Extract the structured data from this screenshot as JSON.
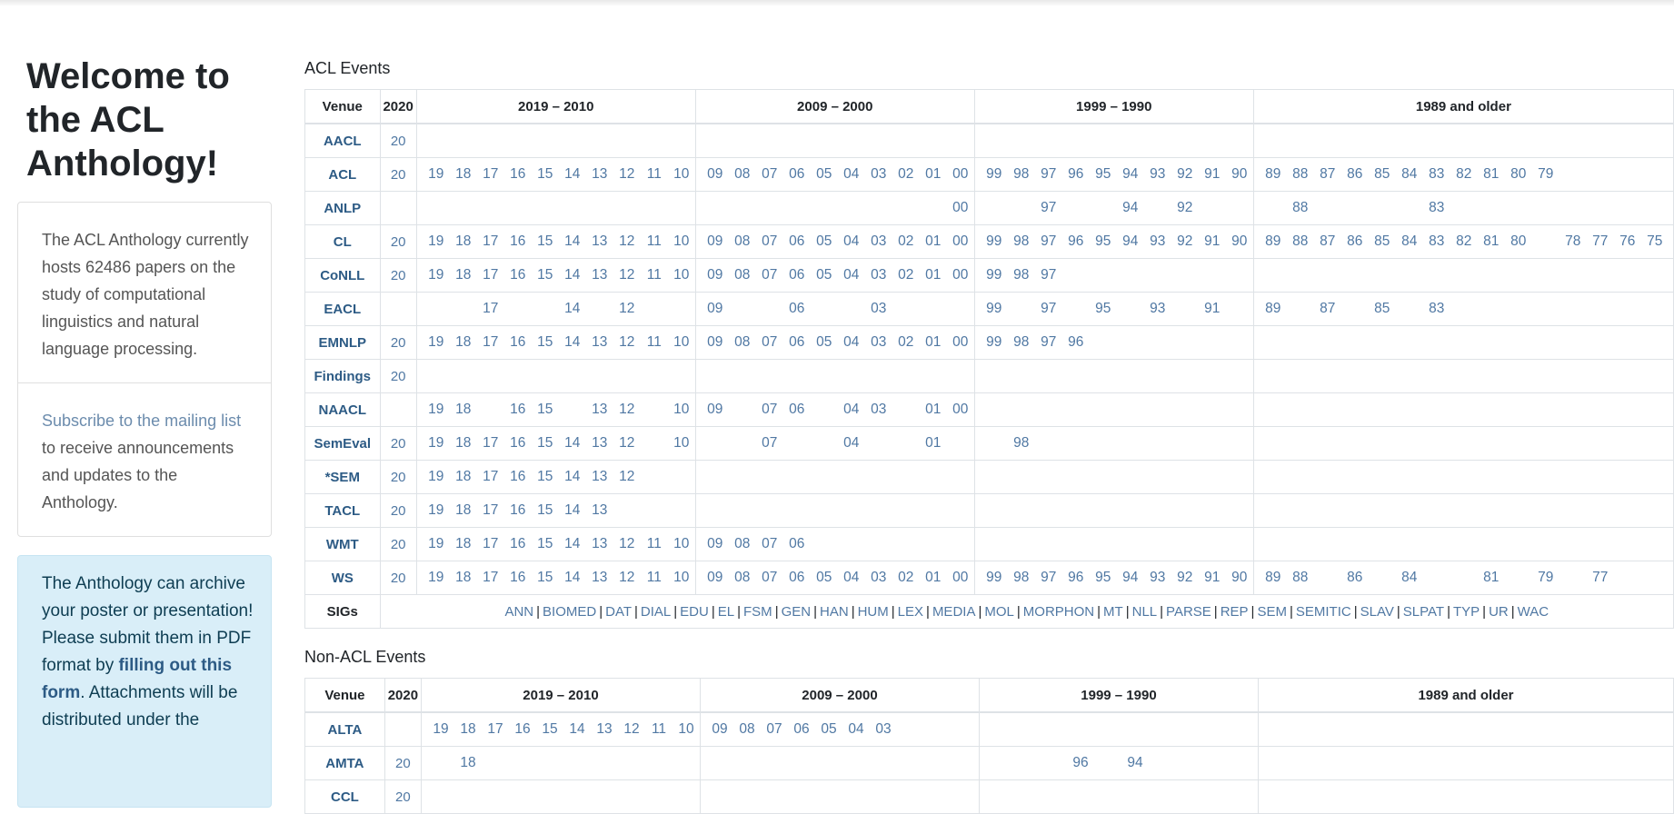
{
  "sidebar": {
    "welcome": "Welcome to the ACL Anthology!",
    "about": "The ACL Anthology currently hosts 62486 papers on the study of computational linguistics and natural language processing.",
    "subscribe_link": "Subscribe to the mailing list",
    "subscribe_rest": " to receive announcements and updates to the Anthology.",
    "info_pre": "The Anthology can archive your poster or presentation! Please submit them in PDF format by ",
    "info_link": "filling out this form",
    "info_post": ". Attachments will be distributed under the"
  },
  "acl_events": {
    "title": "ACL Events",
    "headers": [
      "Venue",
      "2020",
      "2019 – 2010",
      "2009 – 2000",
      "1999 – 1990",
      "1989 and older"
    ],
    "groups": [
      [
        "19",
        "18",
        "17",
        "16",
        "15",
        "14",
        "13",
        "12",
        "11",
        "10"
      ],
      [
        "09",
        "08",
        "07",
        "06",
        "05",
        "04",
        "03",
        "02",
        "01",
        "00"
      ],
      [
        "99",
        "98",
        "97",
        "96",
        "95",
        "94",
        "93",
        "92",
        "91",
        "90"
      ],
      [
        "89",
        "88",
        "87",
        "86",
        "85",
        "84",
        "83",
        "82",
        "81",
        "80",
        "79",
        "78",
        "77",
        "76",
        "75"
      ]
    ],
    "rows": [
      {
        "venue": "AACL",
        "y2020": "20",
        "g1": [],
        "g2": [],
        "g3": [],
        "g4": []
      },
      {
        "venue": "ACL",
        "y2020": "20",
        "g1": [
          "19",
          "18",
          "17",
          "16",
          "15",
          "14",
          "13",
          "12",
          "11",
          "10"
        ],
        "g2": [
          "09",
          "08",
          "07",
          "06",
          "05",
          "04",
          "03",
          "02",
          "01",
          "00"
        ],
        "g3": [
          "99",
          "98",
          "97",
          "96",
          "95",
          "94",
          "93",
          "92",
          "91",
          "90"
        ],
        "g4": [
          "89",
          "88",
          "87",
          "86",
          "85",
          "84",
          "83",
          "82",
          "81",
          "80",
          "79"
        ]
      },
      {
        "venue": "ANLP",
        "y2020": "",
        "g1": [],
        "g2": [
          "00"
        ],
        "g3": [
          "97",
          "94",
          "92"
        ],
        "g4": [
          "88",
          "83"
        ]
      },
      {
        "venue": "CL",
        "y2020": "20",
        "g1": [
          "19",
          "18",
          "17",
          "16",
          "15",
          "14",
          "13",
          "12",
          "11",
          "10"
        ],
        "g2": [
          "09",
          "08",
          "07",
          "06",
          "05",
          "04",
          "03",
          "02",
          "01",
          "00"
        ],
        "g3": [
          "99",
          "98",
          "97",
          "96",
          "95",
          "94",
          "93",
          "92",
          "91",
          "90"
        ],
        "g4": [
          "89",
          "88",
          "87",
          "86",
          "85",
          "84",
          "83",
          "82",
          "81",
          "80",
          "78",
          "77",
          "76",
          "75"
        ]
      },
      {
        "venue": "CoNLL",
        "y2020": "20",
        "g1": [
          "19",
          "18",
          "17",
          "16",
          "15",
          "14",
          "13",
          "12",
          "11",
          "10"
        ],
        "g2": [
          "09",
          "08",
          "07",
          "06",
          "05",
          "04",
          "03",
          "02",
          "01",
          "00"
        ],
        "g3": [
          "99",
          "98",
          "97"
        ],
        "g4": []
      },
      {
        "venue": "EACL",
        "y2020": "",
        "g1": [
          "17",
          "14",
          "12"
        ],
        "g2": [
          "09",
          "06",
          "03"
        ],
        "g3": [
          "99",
          "97",
          "95",
          "93",
          "91"
        ],
        "g4": [
          "89",
          "87",
          "85",
          "83"
        ]
      },
      {
        "venue": "EMNLP",
        "y2020": "20",
        "g1": [
          "19",
          "18",
          "17",
          "16",
          "15",
          "14",
          "13",
          "12",
          "11",
          "10"
        ],
        "g2": [
          "09",
          "08",
          "07",
          "06",
          "05",
          "04",
          "03",
          "02",
          "01",
          "00"
        ],
        "g3": [
          "99",
          "98",
          "97",
          "96"
        ],
        "g4": []
      },
      {
        "venue": "Findings",
        "y2020": "20",
        "g1": [],
        "g2": [],
        "g3": [],
        "g4": []
      },
      {
        "venue": "NAACL",
        "y2020": "",
        "g1": [
          "19",
          "18",
          "16",
          "15",
          "13",
          "12",
          "10"
        ],
        "g2": [
          "09",
          "07",
          "06",
          "04",
          "03",
          "01",
          "00"
        ],
        "g3": [],
        "g4": []
      },
      {
        "venue": "SemEval",
        "y2020": "20",
        "g1": [
          "19",
          "18",
          "17",
          "16",
          "15",
          "14",
          "13",
          "12",
          "10"
        ],
        "g2": [
          "07",
          "04",
          "01"
        ],
        "g3": [
          "98"
        ],
        "g4": []
      },
      {
        "venue": "*SEM",
        "y2020": "20",
        "g1": [
          "19",
          "18",
          "17",
          "16",
          "15",
          "14",
          "13",
          "12"
        ],
        "g2": [],
        "g3": [],
        "g4": []
      },
      {
        "venue": "TACL",
        "y2020": "20",
        "g1": [
          "19",
          "18",
          "17",
          "16",
          "15",
          "14",
          "13"
        ],
        "g2": [],
        "g3": [],
        "g4": []
      },
      {
        "venue": "WMT",
        "y2020": "20",
        "g1": [
          "19",
          "18",
          "17",
          "16",
          "15",
          "14",
          "13",
          "12",
          "11",
          "10"
        ],
        "g2": [
          "09",
          "08",
          "07",
          "06"
        ],
        "g3": [],
        "g4": []
      },
      {
        "venue": "WS",
        "y2020": "20",
        "g1": [
          "19",
          "18",
          "17",
          "16",
          "15",
          "14",
          "13",
          "12",
          "11",
          "10"
        ],
        "g2": [
          "09",
          "08",
          "07",
          "06",
          "05",
          "04",
          "03",
          "02",
          "01",
          "00"
        ],
        "g3": [
          "99",
          "98",
          "97",
          "96",
          "95",
          "94",
          "93",
          "92",
          "91",
          "90"
        ],
        "g4": [
          "89",
          "88",
          "86",
          "84",
          "81",
          "79",
          "77"
        ]
      }
    ],
    "sigs_label": "SIGs",
    "sigs": [
      "ANN",
      "BIOMED",
      "DAT",
      "DIAL",
      "EDU",
      "EL",
      "FSM",
      "GEN",
      "HAN",
      "HUM",
      "LEX",
      "MEDIA",
      "MOL",
      "MORPHON",
      "MT",
      "NLL",
      "PARSE",
      "REP",
      "SEM",
      "SEMITIC",
      "SLAV",
      "SLPAT",
      "TYP",
      "UR",
      "WAC"
    ]
  },
  "non_acl_events": {
    "title": "Non-ACL Events",
    "headers": [
      "Venue",
      "2020",
      "2019 – 2010",
      "2009 – 2000",
      "1999 – 1990",
      "1989 and older"
    ],
    "rows": [
      {
        "venue": "ALTA",
        "y2020": "",
        "g1": [
          "19",
          "18",
          "17",
          "16",
          "15",
          "14",
          "13",
          "12",
          "11",
          "10"
        ],
        "g2": [
          "09",
          "08",
          "07",
          "06",
          "05",
          "04",
          "03"
        ],
        "g3": [],
        "g4": []
      },
      {
        "venue": "AMTA",
        "y2020": "20",
        "g1": [
          "18"
        ],
        "g2": [],
        "g3": [
          "96",
          "94"
        ],
        "g4": []
      },
      {
        "venue": "CCL",
        "y2020": "20",
        "g1": [],
        "g2": [],
        "g3": [],
        "g4": []
      }
    ]
  }
}
